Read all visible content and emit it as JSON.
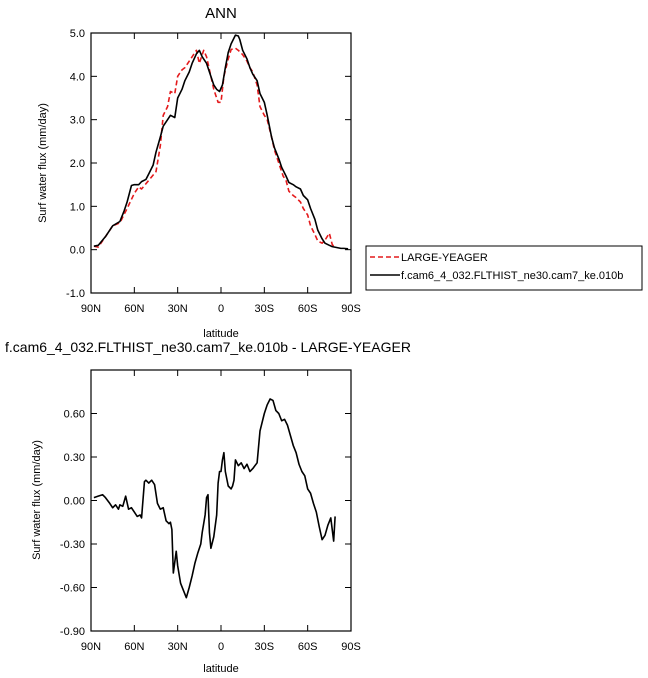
{
  "colors": {
    "red_series": "#e41a1c",
    "black_series": "#000000"
  },
  "top": {
    "title": "ANN",
    "ylabel": "Surf water flux (mm/day)",
    "xlabel": "latitude",
    "legend": [
      {
        "name": "LARGE-YEAGER",
        "color": "#e41a1c",
        "dash": true
      },
      {
        "name": "f.cam6_4_032.FLTHIST_ne30.cam7_ke.010b",
        "color": "#000000",
        "dash": false
      }
    ]
  },
  "bottom": {
    "title": "f.cam6_4_032.FLTHIST_ne30.cam7_ke.010b - LARGE-YEAGER",
    "ylabel": "Surf water flux (mm/day)",
    "xlabel": "latitude"
  },
  "chart_data": [
    {
      "type": "line",
      "title": "ANN",
      "xlabel": "latitude",
      "ylabel": "Surf water flux (mm/day)",
      "xlim": [
        90,
        -90
      ],
      "ylim": [
        -1.0,
        5.0
      ],
      "xticks": [
        90,
        60,
        30,
        0,
        -30,
        -60,
        -90
      ],
      "xtick_labels": [
        "90N",
        "60N",
        "30N",
        "0",
        "30S",
        "60S",
        "90S"
      ],
      "yticks": [
        -1,
        0,
        1,
        2,
        3,
        4,
        5
      ],
      "ytick_labels": [
        "-1.0",
        "0.0",
        "1.0",
        "2.0",
        "3.0",
        "4.0",
        "5.0"
      ],
      "legend_position": "right",
      "series": [
        {
          "name": "LARGE-YEAGER",
          "style": "dashed",
          "color": "#e41a1c",
          "x": [
            88,
            85,
            80,
            75,
            70,
            65,
            60,
            57,
            55,
            50,
            45,
            42,
            40,
            37,
            35,
            32,
            30,
            27,
            25,
            22,
            20,
            17,
            15,
            12,
            10,
            7,
            5,
            2,
            0,
            -2,
            -5,
            -7,
            -10,
            -12,
            -15,
            -18,
            -20,
            -22,
            -25,
            -27,
            -30,
            -32,
            -35,
            -37,
            -40,
            -43,
            -45,
            -47,
            -50,
            -52,
            -55,
            -57,
            -60,
            -62,
            -65,
            -67,
            -70,
            -72,
            -75,
            -77,
            -78
          ],
          "y": [
            0.08,
            0.06,
            0.3,
            0.55,
            0.62,
            0.95,
            1.3,
            1.45,
            1.4,
            1.6,
            1.8,
            2.4,
            3.1,
            3.3,
            3.65,
            3.6,
            4.0,
            4.15,
            4.2,
            4.35,
            4.45,
            4.6,
            4.3,
            4.6,
            4.45,
            4.0,
            3.7,
            3.4,
            3.4,
            4.0,
            4.4,
            4.62,
            4.65,
            4.6,
            4.5,
            4.35,
            4.2,
            4.1,
            3.8,
            3.3,
            3.1,
            3.0,
            2.6,
            2.3,
            2.0,
            1.7,
            1.6,
            1.35,
            1.25,
            1.2,
            1.1,
            0.95,
            0.8,
            0.55,
            0.35,
            0.2,
            0.15,
            0.22,
            0.38,
            0.12,
            0.08
          ]
        },
        {
          "name": "f.cam6_4_032.FLTHIST_ne30.cam7_ke.010b",
          "style": "solid",
          "color": "#000000",
          "x": [
            88,
            85,
            80,
            75,
            70,
            67,
            65,
            62,
            60,
            57,
            55,
            52,
            50,
            47,
            45,
            42,
            40,
            37,
            35,
            32,
            30,
            27,
            25,
            22,
            20,
            17,
            15,
            13,
            10,
            7,
            5,
            3,
            1,
            -1,
            -3,
            -5,
            -7,
            -10,
            -12,
            -13,
            -15,
            -18,
            -20,
            -22,
            -25,
            -27,
            -30,
            -32,
            -35,
            -37,
            -40,
            -42,
            -45,
            -47,
            -50,
            -52,
            -55,
            -57,
            -60,
            -62,
            -65,
            -67,
            -70,
            -72,
            -75,
            -77,
            -80,
            -83,
            -85,
            -88
          ],
          "y": [
            0.08,
            0.1,
            0.3,
            0.55,
            0.65,
            0.9,
            1.1,
            1.48,
            1.5,
            1.5,
            1.57,
            1.62,
            1.75,
            1.95,
            2.25,
            2.6,
            2.85,
            3.0,
            3.1,
            3.05,
            3.5,
            3.7,
            3.9,
            4.1,
            4.3,
            4.52,
            4.6,
            4.45,
            4.3,
            4.0,
            3.8,
            3.7,
            3.65,
            3.8,
            4.2,
            4.55,
            4.75,
            4.95,
            4.93,
            4.85,
            4.6,
            4.4,
            4.2,
            4.05,
            3.9,
            3.6,
            3.4,
            3.1,
            2.6,
            2.35,
            2.1,
            1.9,
            1.7,
            1.55,
            1.5,
            1.45,
            1.4,
            1.25,
            1.15,
            0.95,
            0.7,
            0.45,
            0.25,
            0.15,
            0.1,
            0.07,
            0.05,
            0.03,
            0.03,
            0.02
          ]
        }
      ]
    },
    {
      "type": "line",
      "title": "f.cam6_4_032.FLTHIST_ne30.cam7_ke.010b - LARGE-YEAGER",
      "xlabel": "latitude",
      "ylabel": "Surf water flux (mm/day)",
      "xlim": [
        90,
        -90
      ],
      "ylim": [
        -0.9,
        0.9
      ],
      "xticks": [
        90,
        60,
        30,
        0,
        -30,
        -60,
        -90
      ],
      "xtick_labels": [
        "90N",
        "60N",
        "30N",
        "0",
        "30S",
        "60S",
        "90S"
      ],
      "yticks": [
        -0.9,
        -0.6,
        -0.3,
        0.0,
        0.3,
        0.6
      ],
      "ytick_labels": [
        "-0.90",
        "-0.60",
        "-0.30",
        "0.00",
        "0.30",
        "0.60"
      ],
      "series": [
        {
          "color": "#000000",
          "style": "solid",
          "x": [
            88,
            85,
            82,
            80,
            77,
            75,
            73,
            71,
            70,
            68,
            66,
            64,
            62,
            60,
            58,
            56,
            55,
            53,
            52,
            50,
            48,
            46,
            44,
            42,
            40,
            38,
            36,
            35,
            34,
            33,
            31,
            30,
            28,
            26,
            24,
            22,
            20,
            18,
            16,
            14,
            13,
            12,
            11,
            10,
            9,
            8,
            7,
            5,
            3,
            2,
            1,
            0,
            -1,
            -2,
            -3,
            -5,
            -7,
            -8,
            -9,
            -10,
            -12,
            -14,
            -16,
            -18,
            -20,
            -22,
            -25,
            -27,
            -30,
            -32,
            -34,
            -36,
            -38,
            -40,
            -42,
            -44,
            -46,
            -48,
            -50,
            -52,
            -54,
            -56,
            -58,
            -60,
            -62,
            -64,
            -66,
            -68,
            -70,
            -72,
            -74,
            -76,
            -78,
            -79
          ],
          "y": [
            0.02,
            0.03,
            0.04,
            0.02,
            -0.02,
            -0.05,
            -0.03,
            -0.06,
            -0.03,
            -0.04,
            0.03,
            -0.06,
            -0.05,
            -0.08,
            -0.11,
            -0.1,
            -0.12,
            0.13,
            0.14,
            0.12,
            0.14,
            0.11,
            -0.02,
            -0.06,
            -0.05,
            -0.14,
            -0.16,
            -0.15,
            -0.2,
            -0.5,
            -0.35,
            -0.45,
            -0.57,
            -0.62,
            -0.67,
            -0.6,
            -0.52,
            -0.43,
            -0.36,
            -0.3,
            -0.22,
            -0.16,
            -0.1,
            0.02,
            0.04,
            -0.22,
            -0.33,
            -0.25,
            -0.1,
            0.12,
            0.2,
            0.2,
            0.28,
            0.33,
            0.2,
            0.1,
            0.08,
            0.1,
            0.14,
            0.28,
            0.24,
            0.26,
            0.22,
            0.25,
            0.2,
            0.22,
            0.26,
            0.48,
            0.6,
            0.66,
            0.7,
            0.69,
            0.62,
            0.6,
            0.55,
            0.56,
            0.52,
            0.45,
            0.38,
            0.33,
            0.25,
            0.2,
            0.17,
            0.08,
            0.05,
            -0.02,
            -0.08,
            -0.18,
            -0.27,
            -0.24,
            -0.17,
            -0.12,
            -0.28,
            -0.11
          ]
        }
      ]
    }
  ]
}
